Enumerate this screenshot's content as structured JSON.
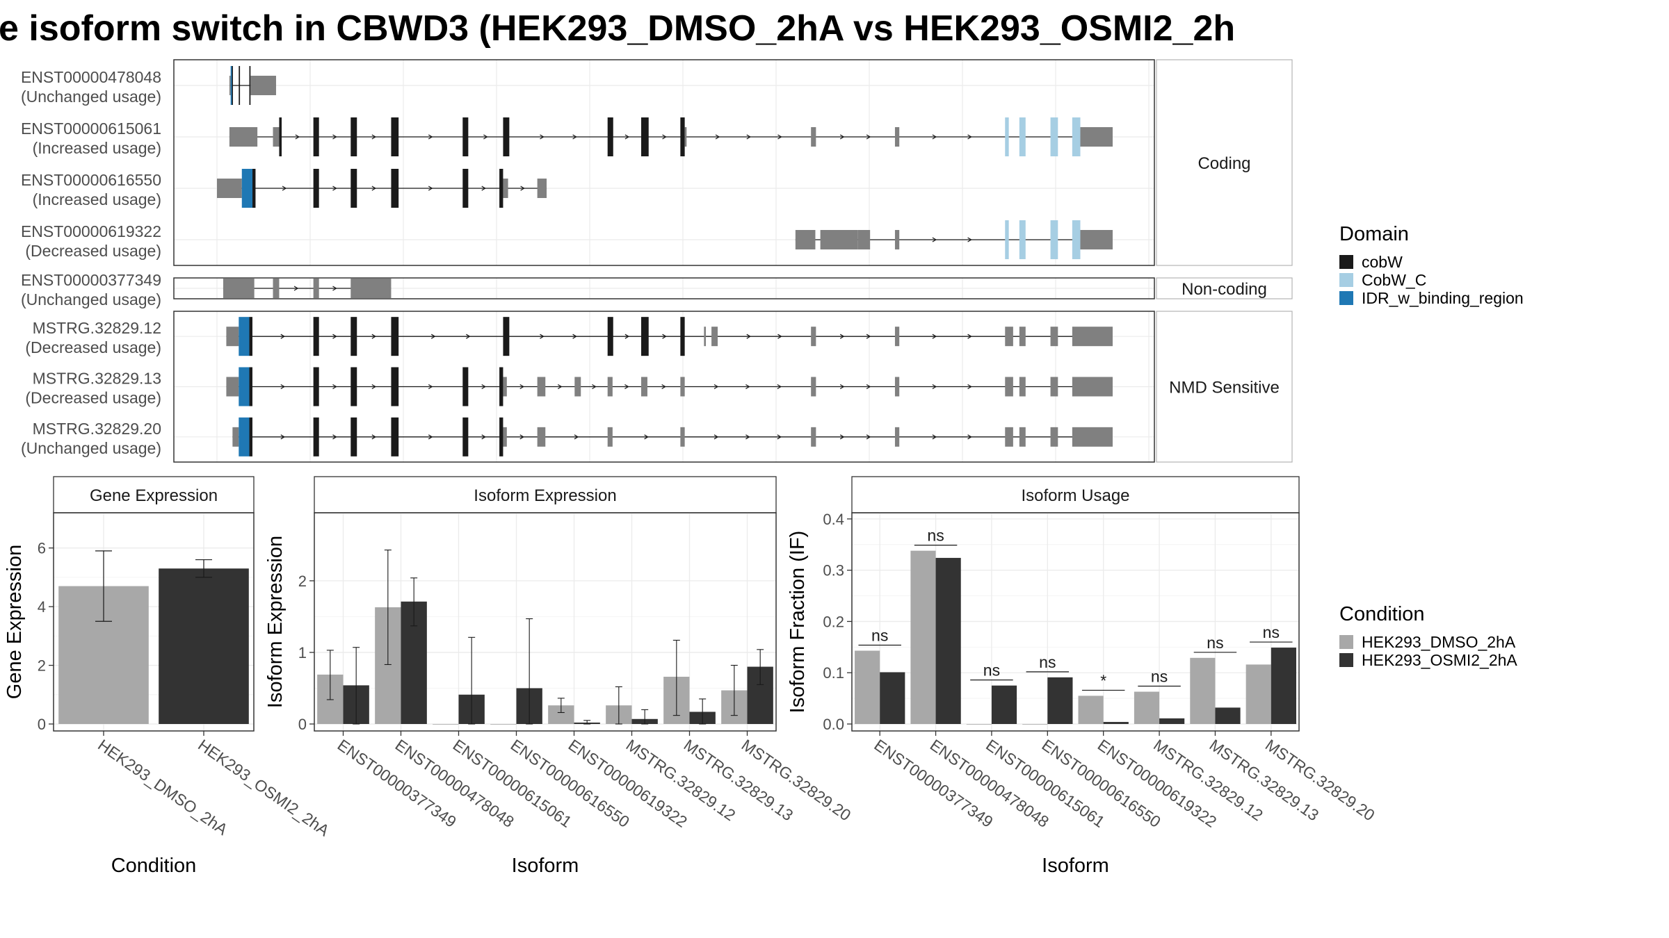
{
  "title": "e isoform switch in CBWD3 (HEK293_DMSO_2hA vs HEK293_OSMI2_2h",
  "colors": {
    "utr": "#808080",
    "cds": "#1a1a1a",
    "cobW": "#1a1a1a",
    "cobW_C": "#a6cee3",
    "IDR": "#1f78b4",
    "cond1": "#a8a8a8",
    "cond2": "#333333"
  },
  "structure": {
    "groups": [
      {
        "name": "Coding",
        "rows": 4
      },
      {
        "name": "Non-coding",
        "rows": 1
      },
      {
        "name": "NMD Sensitive",
        "rows": 3
      }
    ],
    "isoforms": [
      {
        "id": "ENST00000478048",
        "usage": "(Unchanged usage)",
        "group": 0,
        "span": [
          20,
          95
        ],
        "exons": [
          [
            20,
            22,
            "utr"
          ],
          [
            22,
            24,
            "IDR"
          ],
          [
            24,
            25,
            "cds"
          ],
          [
            35,
            37,
            "cds"
          ],
          [
            52,
            54,
            "cds"
          ],
          [
            54,
            55,
            "utr"
          ],
          [
            55,
            95,
            "utr"
          ]
        ]
      },
      {
        "id": "ENST00000615061",
        "usage": "(Increased usage)",
        "group": 0,
        "span": [
          20,
          1440
        ],
        "exons": [
          [
            20,
            65,
            "utr"
          ],
          [
            90,
            100,
            "utr"
          ],
          [
            100,
            104,
            "cds"
          ],
          [
            155,
            164,
            "cds"
          ],
          [
            215,
            225,
            "cds"
          ],
          [
            280,
            292,
            "cds"
          ],
          [
            395,
            404,
            "cds"
          ],
          [
            460,
            470,
            "cds"
          ],
          [
            628,
            637,
            "cds"
          ],
          [
            682,
            694,
            "cds"
          ],
          [
            745,
            752,
            "cds"
          ],
          [
            752,
            755,
            "utr"
          ],
          [
            955,
            963,
            "utr"
          ],
          [
            1090,
            1097,
            "utr"
          ],
          [
            1267,
            1273,
            "cobW_C"
          ],
          [
            1290,
            1300,
            "cobW_C"
          ],
          [
            1340,
            1352,
            "cobW_C"
          ],
          [
            1375,
            1388,
            "cobW_C"
          ],
          [
            1388,
            1440,
            "utr"
          ]
        ]
      },
      {
        "id": "ENST00000616550",
        "usage": "(Increased usage)",
        "group": 0,
        "span": [
          0,
          530
        ],
        "exons": [
          [
            0,
            40,
            "utr"
          ],
          [
            40,
            57,
            "IDR"
          ],
          [
            57,
            62,
            "cds"
          ],
          [
            155,
            164,
            "cds"
          ],
          [
            215,
            225,
            "cds"
          ],
          [
            280,
            292,
            "cds"
          ],
          [
            395,
            404,
            "cds"
          ],
          [
            454,
            460,
            "cds"
          ],
          [
            460,
            468,
            "utr"
          ],
          [
            515,
            530,
            "utr"
          ]
        ]
      },
      {
        "id": "ENST00000619322",
        "usage": "(Decreased usage)",
        "group": 0,
        "span": [
          930,
          1440
        ],
        "exons": [
          [
            930,
            962,
            "utr"
          ],
          [
            970,
            1030,
            "utr"
          ],
          [
            1030,
            1050,
            "utr"
          ],
          [
            1090,
            1097,
            "utr"
          ],
          [
            1267,
            1273,
            "cobW_C"
          ],
          [
            1290,
            1300,
            "cobW_C"
          ],
          [
            1340,
            1352,
            "cobW_C"
          ],
          [
            1375,
            1388,
            "cobW_C"
          ],
          [
            1388,
            1440,
            "utr"
          ]
        ]
      },
      {
        "id": "ENST00000377349",
        "usage": "(Unchanged usage)",
        "group": 1,
        "span": [
          10,
          280
        ],
        "exons": [
          [
            10,
            60,
            "utr"
          ],
          [
            90,
            100,
            "utr"
          ],
          [
            155,
            164,
            "utr"
          ],
          [
            215,
            280,
            "utr"
          ]
        ]
      },
      {
        "id": "MSTRG.32829.12",
        "usage": "(Decreased usage)",
        "group": 2,
        "span": [
          15,
          1440
        ],
        "exons": [
          [
            15,
            35,
            "utr"
          ],
          [
            35,
            52,
            "IDR"
          ],
          [
            52,
            57,
            "cds"
          ],
          [
            155,
            164,
            "cds"
          ],
          [
            215,
            225,
            "cds"
          ],
          [
            280,
            292,
            "cds"
          ],
          [
            460,
            470,
            "cds"
          ],
          [
            628,
            637,
            "cds"
          ],
          [
            682,
            694,
            "cds"
          ],
          [
            745,
            752,
            "cds"
          ],
          [
            783,
            786,
            "utr"
          ],
          [
            795,
            805,
            "utr"
          ],
          [
            955,
            963,
            "utr"
          ],
          [
            1090,
            1097,
            "utr"
          ],
          [
            1267,
            1280,
            "utr"
          ],
          [
            1290,
            1300,
            "utr"
          ],
          [
            1340,
            1352,
            "utr"
          ],
          [
            1375,
            1440,
            "utr"
          ]
        ]
      },
      {
        "id": "MSTRG.32829.13",
        "usage": "(Decreased usage)",
        "group": 2,
        "span": [
          15,
          1440
        ],
        "exons": [
          [
            15,
            35,
            "utr"
          ],
          [
            35,
            52,
            "IDR"
          ],
          [
            52,
            57,
            "cds"
          ],
          [
            155,
            164,
            "cds"
          ],
          [
            215,
            225,
            "cds"
          ],
          [
            280,
            292,
            "cds"
          ],
          [
            395,
            404,
            "cds"
          ],
          [
            454,
            460,
            "cds"
          ],
          [
            460,
            466,
            "utr"
          ],
          [
            515,
            528,
            "utr"
          ],
          [
            575,
            585,
            "utr"
          ],
          [
            628,
            636,
            "utr"
          ],
          [
            682,
            692,
            "utr"
          ],
          [
            745,
            752,
            "utr"
          ],
          [
            955,
            963,
            "utr"
          ],
          [
            1090,
            1097,
            "utr"
          ],
          [
            1267,
            1280,
            "utr"
          ],
          [
            1290,
            1300,
            "utr"
          ],
          [
            1340,
            1352,
            "utr"
          ],
          [
            1375,
            1440,
            "utr"
          ]
        ]
      },
      {
        "id": "MSTRG.32829.20",
        "usage": "(Unchanged usage)",
        "group": 2,
        "span": [
          25,
          1440
        ],
        "exons": [
          [
            25,
            35,
            "utr"
          ],
          [
            35,
            52,
            "IDR"
          ],
          [
            52,
            57,
            "cds"
          ],
          [
            155,
            164,
            "cds"
          ],
          [
            215,
            225,
            "cds"
          ],
          [
            280,
            292,
            "cds"
          ],
          [
            395,
            404,
            "cds"
          ],
          [
            454,
            460,
            "cds"
          ],
          [
            460,
            466,
            "utr"
          ],
          [
            515,
            528,
            "utr"
          ],
          [
            628,
            636,
            "utr"
          ],
          [
            745,
            752,
            "utr"
          ],
          [
            955,
            963,
            "utr"
          ],
          [
            1090,
            1097,
            "utr"
          ],
          [
            1267,
            1280,
            "utr"
          ],
          [
            1290,
            1300,
            "utr"
          ],
          [
            1340,
            1352,
            "utr"
          ],
          [
            1375,
            1440,
            "utr"
          ]
        ]
      }
    ]
  },
  "legends": {
    "domain_title": "Domain",
    "domain_items": [
      {
        "label": "cobW",
        "color": "#1a1a1a"
      },
      {
        "label": "CobW_C",
        "color": "#a6cee3"
      },
      {
        "label": "IDR_w_binding_region",
        "color": "#1f78b4"
      }
    ],
    "condition_title": "Condition",
    "condition_items": [
      {
        "label": "HEK293_DMSO_2hA",
        "color": "#a8a8a8"
      },
      {
        "label": "HEK293_OSMI2_2hA",
        "color": "#333333"
      }
    ]
  },
  "chart_data": [
    {
      "type": "bar",
      "title": "Gene Expression",
      "xlabel": "Condition",
      "ylabel": "Gene Expression",
      "ylim": [
        0,
        7.2
      ],
      "yticks": [
        0,
        2,
        4,
        6
      ],
      "categories": [
        "HEK293_DMSO_2hA",
        "HEK293_OSMI2_2hA"
      ],
      "values": [
        4.7,
        5.3
      ],
      "err_low": [
        3.5,
        5.0
      ],
      "err_high": [
        5.9,
        5.6
      ]
    },
    {
      "type": "bar",
      "title": "Isoform Expression",
      "xlabel": "Isoform",
      "ylabel": "Isoform Expression",
      "ylim": [
        0,
        2.95
      ],
      "yticks": [
        0,
        1,
        2
      ],
      "categories": [
        "ENST00000377349",
        "ENST00000478048",
        "ENST00000615061",
        "ENST00000616550",
        "ENST00000619322",
        "MSTRG.32829.12",
        "MSTRG.32829.13",
        "MSTRG.32829.20"
      ],
      "series": [
        {
          "name": "HEK293_DMSO_2hA",
          "values": [
            0.69,
            1.63,
            0.0,
            0.0,
            0.26,
            0.26,
            0.66,
            0.47
          ],
          "err_low": [
            0.34,
            0.83,
            0.0,
            0.0,
            0.16,
            0.0,
            0.12,
            0.12
          ],
          "err_high": [
            1.03,
            2.43,
            0.0,
            0.0,
            0.36,
            0.52,
            1.17,
            0.82
          ]
        },
        {
          "name": "HEK293_OSMI2_2hA",
          "values": [
            0.54,
            1.71,
            0.41,
            0.5,
            0.02,
            0.07,
            0.17,
            0.8
          ],
          "err_low": [
            0.0,
            1.37,
            0.0,
            0.0,
            0.0,
            0.0,
            0.0,
            0.55
          ],
          "err_high": [
            1.07,
            2.04,
            1.21,
            1.47,
            0.05,
            0.2,
            0.35,
            1.04
          ]
        }
      ]
    },
    {
      "type": "bar",
      "title": "Isoform Usage",
      "xlabel": "Isoform",
      "ylabel": "Isoform Fraction (IF)",
      "ylim": [
        0,
        0.412
      ],
      "yticks": [
        0.0,
        0.1,
        0.2,
        0.3,
        0.4
      ],
      "categories": [
        "ENST00000377349",
        "ENST00000478048",
        "ENST00000615061",
        "ENST00000616550",
        "ENST00000619322",
        "MSTRG.32829.12",
        "MSTRG.32829.13",
        "MSTRG.32829.20"
      ],
      "series": [
        {
          "name": "HEK293_DMSO_2hA",
          "values": [
            0.143,
            0.338,
            0.0,
            0.0,
            0.055,
            0.063,
            0.129,
            0.116
          ]
        },
        {
          "name": "HEK293_OSMI2_2hA",
          "values": [
            0.101,
            0.324,
            0.075,
            0.091,
            0.004,
            0.011,
            0.032,
            0.149
          ]
        }
      ],
      "significance": [
        "ns",
        "ns",
        "ns",
        "ns",
        "*",
        "ns",
        "ns",
        "ns"
      ]
    }
  ]
}
